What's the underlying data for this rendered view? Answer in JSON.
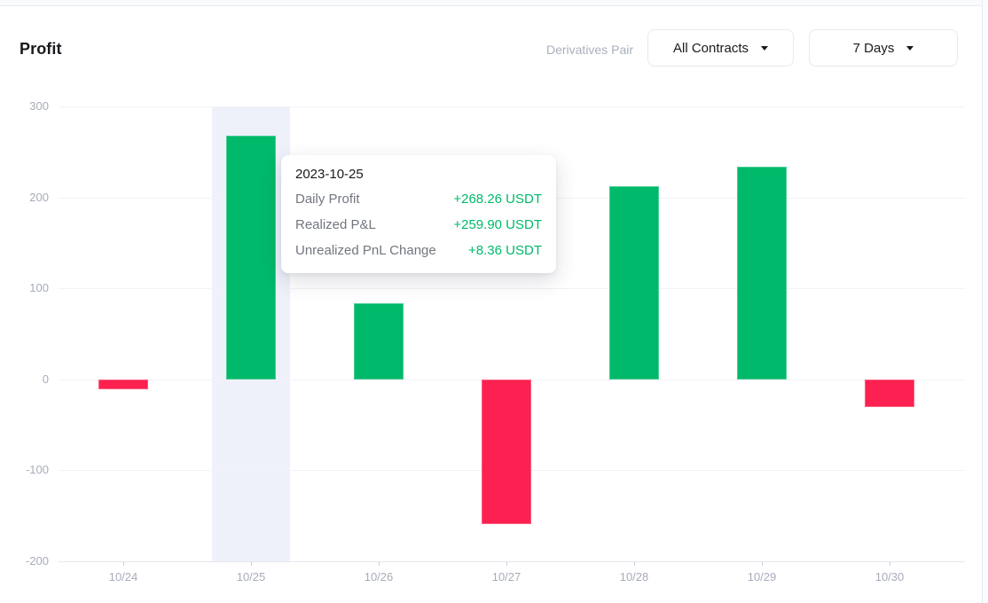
{
  "header": {
    "title": "Profit",
    "pair_label": "Derivatives Pair",
    "contracts_dropdown": {
      "value": "All Contracts"
    },
    "period_dropdown": {
      "value": "7 Days"
    }
  },
  "icons": {
    "contracts_caret": "chevron-down",
    "period_caret": "chevron-down"
  },
  "tooltip": {
    "date": "2023-10-25",
    "rows": [
      {
        "label": "Daily Profit",
        "value": "+268.26 USDT"
      },
      {
        "label": "Realized P&L",
        "value": "+259.90 USDT"
      },
      {
        "label": "Unrealized PnL Change",
        "value": "+8.36 USDT"
      }
    ]
  },
  "colors": {
    "positive": "#00b96a",
    "negative": "#fc2150",
    "tooltip_value": "#00b96a",
    "highlight_band": "#eef1f9",
    "grid": "#f1f3f8",
    "axis": "#e4e7ee",
    "axis_text": "#a6acb9"
  },
  "chart_data": {
    "type": "bar",
    "series_name": "Daily Profit",
    "unit": "USDT",
    "categories": [
      "10/24",
      "10/25",
      "10/26",
      "10/27",
      "10/28",
      "10/29",
      "10/30"
    ],
    "values": [
      -11,
      268.26,
      84,
      -159,
      212,
      234,
      -30
    ],
    "title": "Profit",
    "xlabel": "",
    "ylabel": "USDT",
    "ylim": [
      -200,
      300
    ],
    "yticks": [
      300,
      200,
      100,
      0,
      -100,
      -200
    ],
    "grid": true,
    "legend": false,
    "highlighted_category": "10/25",
    "positive_color": "#00b96a",
    "negative_color": "#fc2150"
  }
}
